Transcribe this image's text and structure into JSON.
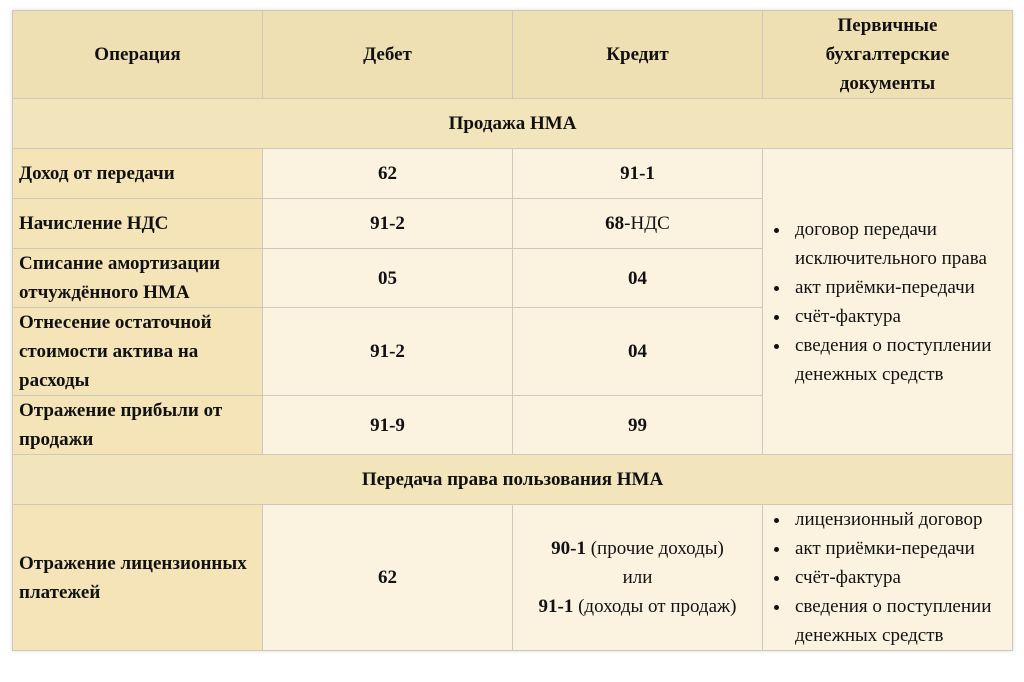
{
  "header": [
    "Операция",
    "Дебет",
    "Кредит",
    "Первичные бухгалтерские документы"
  ],
  "sections": [
    {
      "title": "Продажа НМА",
      "rows": [
        {
          "operation": "Доход от передачи",
          "debit": "62",
          "credit": [
            [
              {
                "text": "91-1",
                "bold": true
              }
            ]
          ]
        },
        {
          "operation": "Начисление НДС",
          "debit": "91-2",
          "credit": [
            [
              {
                "text": "68",
                "bold": true
              },
              {
                "text": "-НДС",
                "bold": false
              }
            ]
          ]
        },
        {
          "operation": "Списание амортизации отчуждённого НМА",
          "debit": "05",
          "credit": [
            [
              {
                "text": "04",
                "bold": true
              }
            ]
          ]
        },
        {
          "operation": "Отнесение остаточной стоимости актива на расходы",
          "debit": "91-2",
          "credit": [
            [
              {
                "text": "04",
                "bold": true
              }
            ]
          ]
        },
        {
          "operation": "Отражение прибыли от продажи",
          "debit": "91-9",
          "credit": [
            [
              {
                "text": "99",
                "bold": true
              }
            ]
          ]
        }
      ],
      "documents": [
        "договор передачи исключительного права",
        "акт приёмки-передачи",
        "счёт-фактура",
        "сведения о поступлении денежных средств"
      ]
    },
    {
      "title": "Передача права пользования НМА",
      "rows": [
        {
          "operation": "Отражение лицензионных платежей",
          "debit": "62",
          "credit": [
            [
              {
                "text": "90-1",
                "bold": true
              },
              {
                "text": " (прочие доходы)",
                "bold": false
              }
            ],
            [
              {
                "text": "или",
                "bold": false
              }
            ],
            [
              {
                "text": "91-1",
                "bold": true
              },
              {
                "text": " (доходы от продаж)",
                "bold": false
              }
            ]
          ]
        }
      ],
      "documents": [
        "лицензионный договор",
        "акт приёмки-передачи",
        "счёт-фактура",
        "сведения о поступлении денежных средств"
      ]
    }
  ]
}
